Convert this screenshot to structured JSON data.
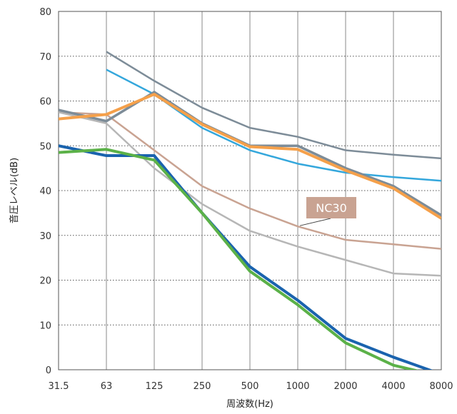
{
  "chart_data": {
    "type": "line",
    "xlabel": "周波数(Hz)",
    "ylabel": "音圧レベル(dB)",
    "categories": [
      "31.5",
      "63",
      "125",
      "250",
      "500",
      "1000",
      "2000",
      "4000",
      "8000"
    ],
    "ylim": [
      0,
      80
    ],
    "yticks": [
      0,
      10,
      20,
      30,
      40,
      50,
      60,
      70,
      80
    ],
    "grid": {
      "vertical": "solid",
      "horizontal": "dotted"
    },
    "annotation": {
      "text": "NC30",
      "color": "#c9a392",
      "target_series_index": 2,
      "target_category_index": 5
    },
    "series": [
      {
        "color": "#7d8c98",
        "width": 2.5,
        "values": [
          null,
          71,
          64.5,
          58.5,
          54,
          52,
          49,
          48,
          47.2
        ]
      },
      {
        "color": "#34a7dc",
        "width": 2.5,
        "values": [
          null,
          67,
          61.5,
          54,
          49,
          46,
          44,
          43,
          42.2
        ]
      },
      {
        "color": "#c9a392",
        "width": 2.5,
        "values": [
          57.5,
          57,
          49,
          41,
          36,
          32,
          29,
          28,
          27
        ]
      },
      {
        "color": "#b6b6b6",
        "width": 2.5,
        "values": [
          57.5,
          55,
          45,
          37,
          31,
          27.5,
          24.5,
          21.5,
          21
        ]
      },
      {
        "color": "#7d8c98",
        "width": 3.5,
        "values": [
          58,
          55.5,
          62,
          55,
          50,
          50,
          45,
          41,
          34.5
        ]
      },
      {
        "color": "#f5a04a",
        "width": 4,
        "values": [
          56,
          57,
          61.5,
          54.8,
          49.8,
          49.2,
          44.5,
          40.5,
          33.8
        ]
      },
      {
        "color": "#1a63ae",
        "width": 4,
        "values": [
          50,
          47.8,
          47.8,
          35,
          23,
          15.5,
          7,
          2.8,
          -1
        ]
      },
      {
        "color": "#5bb148",
        "width": 4,
        "values": [
          48.5,
          49.2,
          46.8,
          35,
          22,
          14.5,
          6,
          1,
          -1.5
        ]
      }
    ]
  }
}
